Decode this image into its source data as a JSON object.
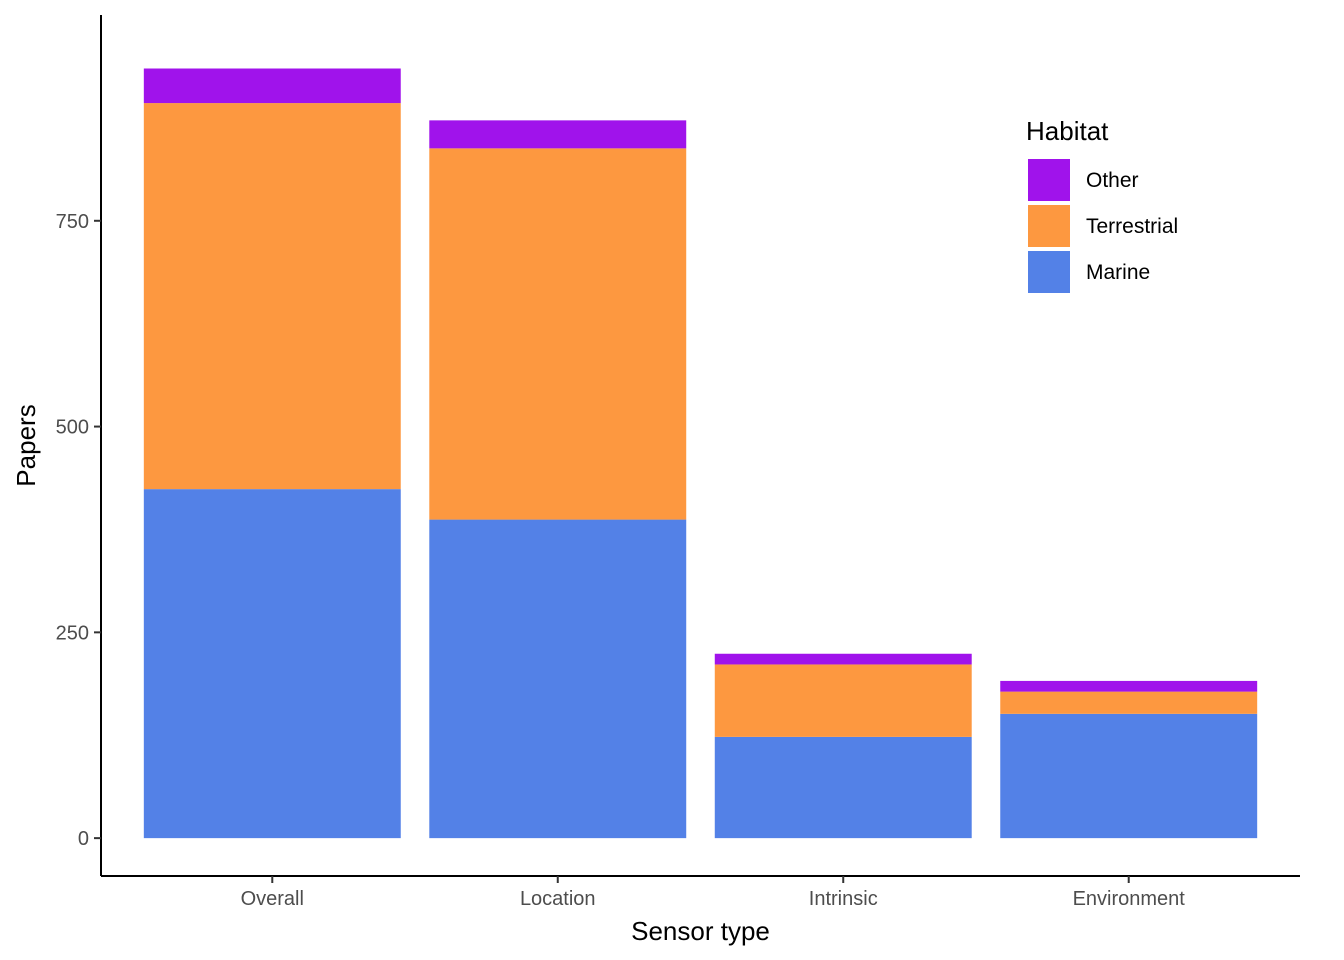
{
  "chart_data": {
    "type": "bar",
    "stacked": true,
    "xlabel": "Sensor type",
    "ylabel": "Papers",
    "ylim": [
      -46,
      1000
    ],
    "yticks": [
      0,
      250,
      500,
      750
    ],
    "ytick_labels": [
      "0",
      "250",
      "500",
      "750"
    ],
    "grid": false,
    "legend_position": "top-right",
    "categories": [
      "Overall",
      "Location",
      "Intrinsic",
      "Environment"
    ],
    "series": [
      {
        "name": "Marine",
        "color": "#5381E7",
        "values": [
          424,
          387,
          123,
          151
        ]
      },
      {
        "name": "Terrestrial",
        "color": "#FD9840",
        "values": [
          469,
          451,
          88,
          27
        ]
      },
      {
        "name": "Other",
        "color": "#A013EB",
        "values": [
          42,
          34,
          13,
          13
        ]
      }
    ],
    "legend": {
      "title": "Habitat",
      "entries": [
        "Other",
        "Terrestrial",
        "Marine"
      ]
    }
  }
}
